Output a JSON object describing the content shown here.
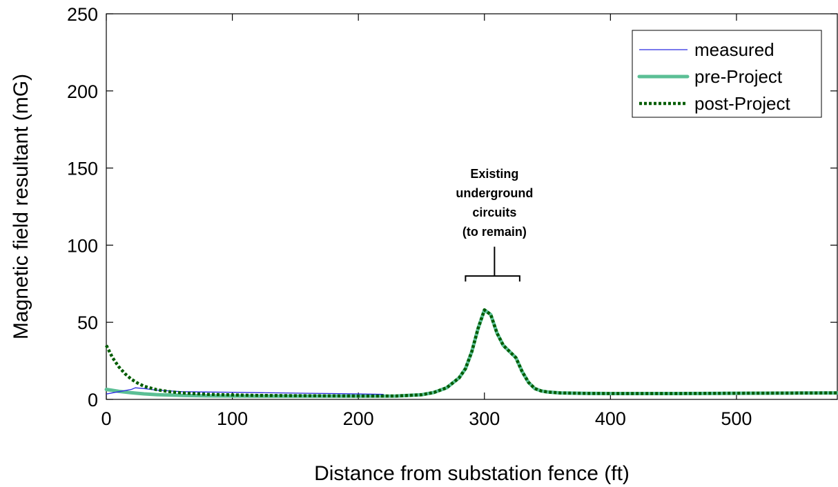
{
  "chart_data": {
    "type": "line",
    "xlabel": "Distance from substation fence (ft)",
    "ylabel": "Magnetic field resultant (mG)",
    "xlim": [
      0,
      580
    ],
    "ylim": [
      0,
      250
    ],
    "xticks": [
      0,
      100,
      200,
      300,
      400,
      500
    ],
    "yticks": [
      0,
      50,
      100,
      150,
      200,
      250
    ],
    "grid": false,
    "legend_position": "top-right",
    "series": [
      {
        "name": "measured",
        "color": "#2b2be0",
        "style": "solid-thin",
        "x": [
          0,
          10,
          20,
          23,
          30,
          40,
          60,
          80,
          100,
          120,
          140,
          160,
          180,
          200,
          220
        ],
        "y": [
          3.5,
          5,
          6.5,
          7.5,
          7,
          6,
          5,
          4.8,
          4.6,
          4.4,
          4.2,
          4.0,
          3.8,
          3.6,
          3.3
        ]
      },
      {
        "name": "pre-Project",
        "color": "#5bbf95",
        "style": "solid-thick",
        "x": [
          0,
          10,
          20,
          30,
          40,
          60,
          80,
          100,
          120,
          150,
          200,
          230,
          250,
          260,
          270,
          280,
          285,
          290,
          295,
          300,
          305,
          310,
          315,
          320,
          325,
          330,
          335,
          340,
          345,
          350,
          360,
          380,
          400,
          450,
          500,
          550,
          580
        ],
        "y": [
          6.5,
          5.2,
          4.3,
          3.6,
          3.1,
          2.6,
          2.3,
          2.2,
          2.1,
          2.1,
          2.1,
          2.2,
          3.0,
          4.5,
          7.5,
          14,
          20,
          31,
          46,
          58,
          55,
          43,
          35,
          31,
          27,
          18,
          11,
          7,
          5.5,
          4.8,
          4.2,
          3.9,
          3.8,
          3.8,
          4.0,
          4.1,
          4.2
        ]
      },
      {
        "name": "post-Project",
        "color": "#005c00",
        "style": "dotted-thick",
        "x": [
          0,
          5,
          10,
          15,
          20,
          25,
          30,
          40,
          50,
          60,
          80,
          100,
          120,
          150,
          200,
          230,
          250,
          260,
          270,
          280,
          285,
          290,
          295,
          300,
          305,
          310,
          315,
          320,
          325,
          330,
          335,
          340,
          345,
          350,
          360,
          380,
          400,
          450,
          500,
          550,
          580
        ],
        "y": [
          35,
          27,
          21,
          16.5,
          13,
          10.5,
          8.5,
          6.3,
          5.0,
          4.2,
          3.3,
          2.9,
          2.6,
          2.4,
          2.2,
          2.2,
          3.0,
          4.5,
          7.5,
          14,
          20,
          31,
          46,
          58,
          55,
          43,
          35,
          31,
          27,
          18,
          11,
          7,
          5.5,
          4.8,
          4.2,
          3.9,
          3.8,
          3.8,
          4.0,
          4.1,
          4.2
        ]
      }
    ],
    "annotation": {
      "lines": [
        "Existing",
        "underground",
        "circuits",
        "(to remain)"
      ],
      "bracket_x": [
        285,
        328
      ],
      "bracket_center_x": 308,
      "bracket_y": 80,
      "stem_top_y": 99
    }
  }
}
